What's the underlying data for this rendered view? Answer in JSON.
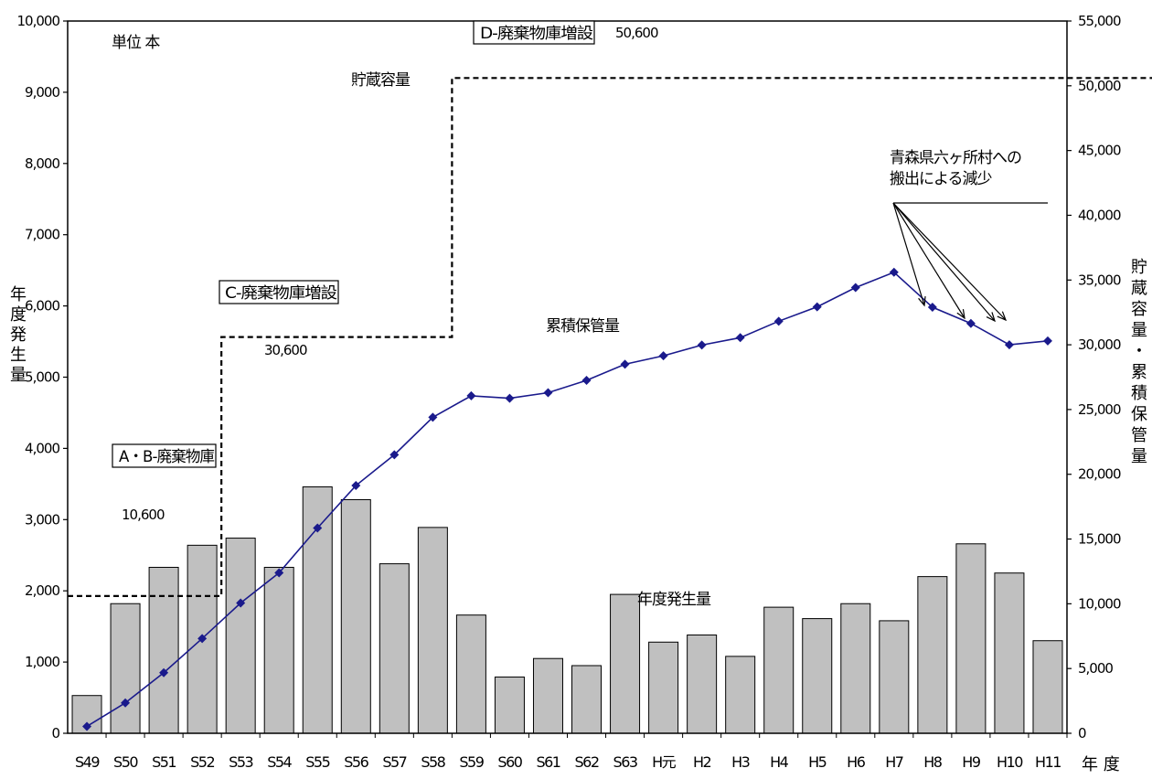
{
  "chart_data": {
    "type": "bar+line",
    "unit_label": "単位 本",
    "categories": [
      "S49",
      "S50",
      "S51",
      "S52",
      "S53",
      "S54",
      "S55",
      "S56",
      "S57",
      "S58",
      "S59",
      "S60",
      "S61",
      "S62",
      "S63",
      "H元",
      "H2",
      "H3",
      "H4",
      "H5",
      "H6",
      "H7",
      "H8",
      "H9",
      "H10",
      "H11"
    ],
    "y_left": {
      "label_chars": [
        "年",
        "度",
        "発",
        "生",
        "量"
      ],
      "ylim": [
        0,
        10000
      ],
      "ticks": [
        "0",
        "1,000",
        "2,000",
        "3,000",
        "4,000",
        "5,000",
        "6,000",
        "7,000",
        "8,000",
        "9,000",
        "10,000"
      ]
    },
    "y_right": {
      "label_chars": [
        "貯",
        "蔵",
        "容",
        "量",
        "・",
        "累",
        "積",
        "保",
        "管",
        "量"
      ],
      "ylim": [
        0,
        55000
      ],
      "ticks": [
        "0",
        "5,000",
        "10,000",
        "15,000",
        "20,000",
        "25,000",
        "30,000",
        "35,000",
        "40,000",
        "45,000",
        "50,000",
        "55,000"
      ]
    },
    "x_label": "年 度",
    "series": [
      {
        "name": "年度発生量",
        "type": "bar",
        "axis": "left",
        "color": "#c0c0c0",
        "values": [
          530,
          1820,
          2330,
          2640,
          2740,
          2330,
          3460,
          3280,
          2380,
          2890,
          1660,
          790,
          1050,
          950,
          1950,
          1280,
          1380,
          1080,
          1770,
          1610,
          1820,
          1580,
          2200,
          2660,
          2250,
          1300
        ]
      },
      {
        "name": "累積保管量",
        "type": "line",
        "axis": "right",
        "color": "#1a1a8c",
        "values": [
          530,
          2350,
          4680,
          7320,
          10060,
          12390,
          15850,
          19130,
          21510,
          24400,
          26060,
          25870,
          26300,
          27250,
          28500,
          29150,
          29980,
          30550,
          31820,
          32930,
          34420,
          35600,
          32900,
          31650,
          30000,
          30300
        ]
      },
      {
        "name": "貯蔵容量",
        "type": "step",
        "axis": "right",
        "style": "dashed",
        "steps": [
          {
            "label": "A・B-廃棄物庫",
            "capacity": 10600,
            "capacity_label": "10,600"
          },
          {
            "label": "C-廃棄物庫増設",
            "capacity": 30600,
            "capacity_label": "30,600"
          },
          {
            "label": "D-廃棄物庫増設",
            "capacity": 50600,
            "capacity_label": "50,600"
          }
        ]
      }
    ],
    "annotations": {
      "storage_capacity": "貯蔵容量",
      "cumulative": "累積保管量",
      "annual": "年度発生量",
      "rokkasho_line1": "青森県六ヶ所村への",
      "rokkasho_line2": "搬出による減少"
    }
  }
}
